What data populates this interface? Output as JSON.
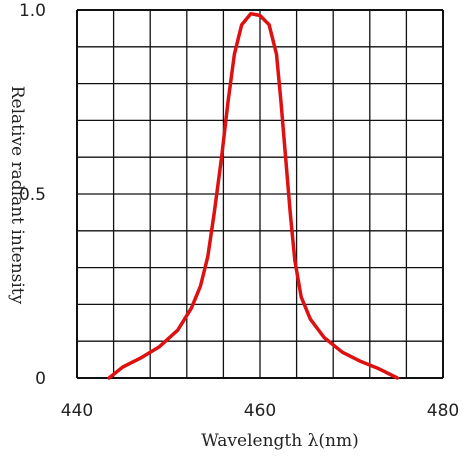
{
  "chart_data": {
    "type": "line",
    "xlabel": "Wavelength λ(nm)",
    "ylabel": "Relative radiant intensity",
    "xlim": [
      440,
      480
    ],
    "ylim": [
      0,
      1.0
    ],
    "x_ticks": [
      {
        "value": 440,
        "label": "440"
      },
      {
        "value": 460,
        "label": "460"
      },
      {
        "value": 480,
        "label": "480"
      }
    ],
    "y_ticks": [
      {
        "value": 0,
        "label": "0"
      },
      {
        "value": 0.5,
        "label": "0.5"
      },
      {
        "value": 1.0,
        "label": "1.0"
      }
    ],
    "grid": true,
    "grid_x_divisions": 10,
    "grid_y_divisions": 10,
    "series": [
      {
        "color": "#dd1111",
        "points": [
          [
            443.5,
            0.0
          ],
          [
            445.0,
            0.03
          ],
          [
            447.0,
            0.055
          ],
          [
            449.0,
            0.085
          ],
          [
            451.0,
            0.13
          ],
          [
            452.5,
            0.19
          ],
          [
            453.5,
            0.25
          ],
          [
            454.3,
            0.33
          ],
          [
            455.0,
            0.45
          ],
          [
            455.8,
            0.6
          ],
          [
            456.5,
            0.75
          ],
          [
            457.2,
            0.88
          ],
          [
            458.0,
            0.96
          ],
          [
            459.0,
            0.99
          ],
          [
            460.0,
            0.985
          ],
          [
            461.0,
            0.96
          ],
          [
            461.8,
            0.88
          ],
          [
            462.3,
            0.75
          ],
          [
            462.8,
            0.6
          ],
          [
            463.3,
            0.45
          ],
          [
            463.8,
            0.32
          ],
          [
            464.5,
            0.22
          ],
          [
            465.5,
            0.16
          ],
          [
            467.0,
            0.11
          ],
          [
            469.0,
            0.07
          ],
          [
            471.0,
            0.045
          ],
          [
            473.0,
            0.025
          ],
          [
            475.0,
            0.0
          ]
        ]
      }
    ]
  }
}
